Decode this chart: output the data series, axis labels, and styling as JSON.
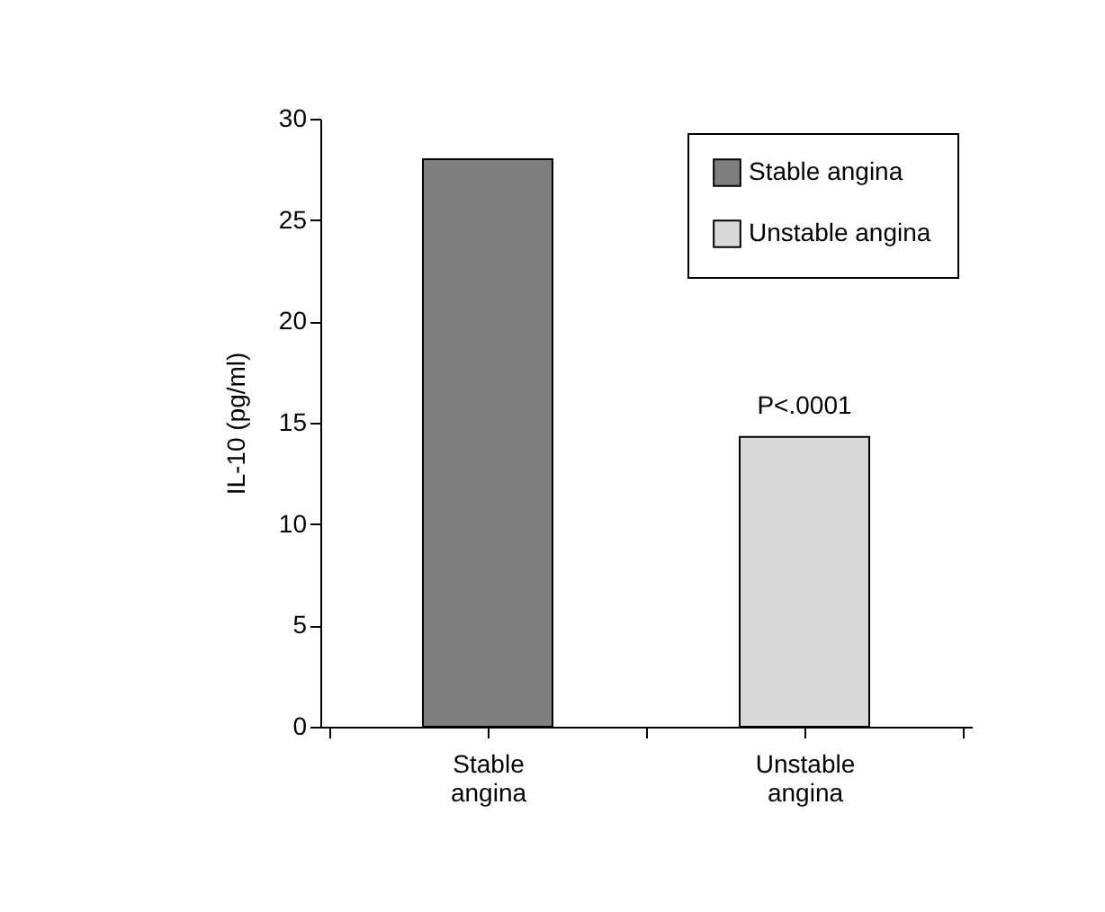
{
  "chart_data": {
    "type": "bar",
    "ylabel": "IL-10 (pg/ml)",
    "categories": [
      "Stable angina",
      "Unstable angina"
    ],
    "series": [
      {
        "name": "Stable angina",
        "color": "#7f7f7f",
        "values": [
          28,
          null
        ]
      },
      {
        "name": "Unstable angina",
        "color": "#d9d9d9",
        "values": [
          null,
          14.3
        ]
      }
    ],
    "ylim": [
      0,
      30
    ],
    "yticks": [
      0,
      5,
      10,
      15,
      20,
      25,
      30
    ],
    "grid": false,
    "legend": "top right",
    "annotations": [
      "P<.0001"
    ]
  }
}
